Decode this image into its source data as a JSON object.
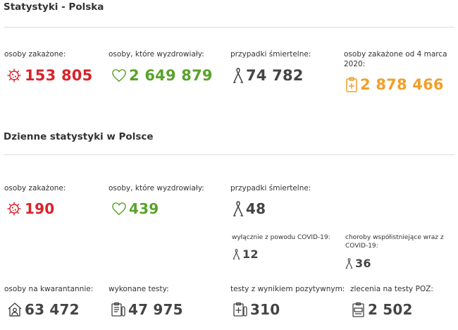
{
  "colors": {
    "infected": "#d9232a",
    "recovered": "#5aa32a",
    "deaths": "#444444",
    "total": "#f0a02a"
  },
  "section1": {
    "title": "Statystyki - Polska",
    "infected": {
      "label": "osoby zakażone:",
      "value": "153 805",
      "icon": "virus-icon"
    },
    "recovered": {
      "label": "osoby, które wyzdrowiały:",
      "value": "2 649 879",
      "icon": "heart-icon"
    },
    "deaths": {
      "label": "przypadki śmiertelne:",
      "value": "74 782",
      "icon": "ribbon-icon"
    },
    "total": {
      "label": "osoby zakażone od 4 marca 2020:",
      "value": "2 878 466",
      "icon": "clipboard-plus-icon"
    }
  },
  "section2": {
    "title": "Dzienne statystyki w Polsce",
    "infected": {
      "label": "osoby zakażone:",
      "value": "190",
      "icon": "virus-icon"
    },
    "recovered": {
      "label": "osoby, które wyzdrowiały:",
      "value": "439",
      "icon": "heart-icon"
    },
    "deaths": {
      "label": "przypadki śmiertelne:",
      "value": "48",
      "icon": "ribbon-icon"
    },
    "covid_only": {
      "label": "wyłącznie z powodu COVID-19:",
      "value": "12",
      "icon": "ribbon-icon"
    },
    "comorbid": {
      "label": "choroby współistniejące wraz z COVID-19:",
      "value": "36",
      "icon": "ribbon-icon"
    },
    "quarantine": {
      "label": "osoby na kwarantannie:",
      "value": "63 472",
      "icon": "house-person-icon"
    },
    "tests": {
      "label": "wykonane testy:",
      "value": "47 975",
      "icon": "clipboard-tube-icon"
    },
    "positive": {
      "label": "testy z wynikiem pozytywnym:",
      "value": "310",
      "icon": "clipboard-plus-tube-icon"
    },
    "poz": {
      "label": "zlecenia na testy POZ:",
      "value": "2 502",
      "icon": "poz-clipboard-icon"
    }
  }
}
